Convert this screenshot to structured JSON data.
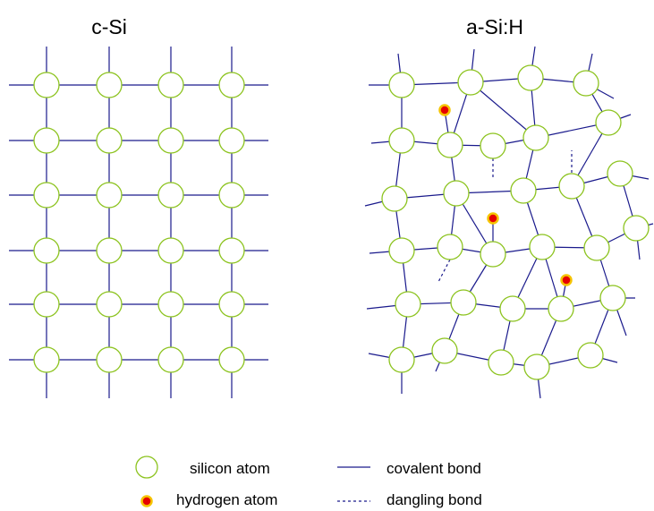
{
  "titles": {
    "left": "c-Si",
    "right": "a-Si:H"
  },
  "legend": {
    "silicon_atom": "silicon atom",
    "hydrogen_atom": "hydrogen atom",
    "covalent_bond": "covalent bond",
    "dangling_bond": "dangling bond"
  },
  "colors": {
    "bond": "#1a1a8c",
    "silicon_stroke": "#8cc31e",
    "hydrogen_fill": "#e60000",
    "hydrogen_stroke": "#f5c400"
  }
}
